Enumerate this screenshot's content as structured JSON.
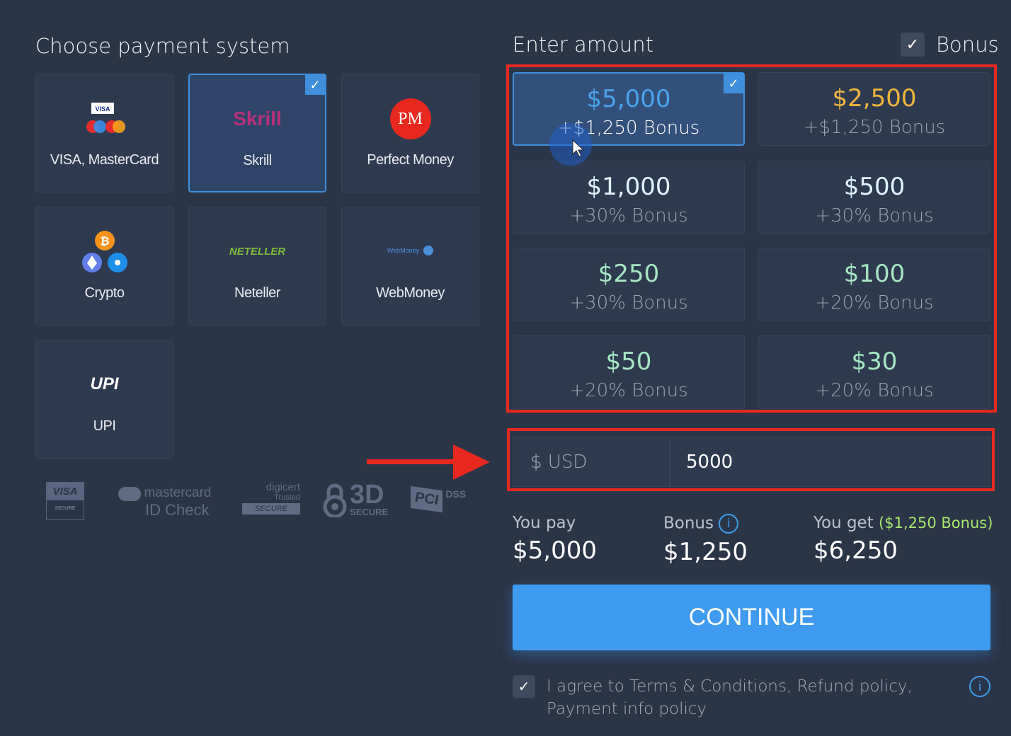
{
  "left": {
    "title": "Choose payment system",
    "methods": [
      {
        "label": "VISA, MasterCard",
        "icon": "visa-mastercard-icon",
        "selected": false
      },
      {
        "label": "Skrill",
        "icon": "skrill-logo",
        "logo_text": "Skrill",
        "selected": true
      },
      {
        "label": "Perfect Money",
        "icon": "perfect-money-logo",
        "logo_text": "PM",
        "selected": false
      },
      {
        "label": "Crypto",
        "icon": "crypto-icon",
        "selected": false
      },
      {
        "label": "Neteller",
        "icon": "neteller-logo",
        "logo_text": "NETELLER",
        "selected": false
      },
      {
        "label": "WebMoney",
        "icon": "webmoney-logo",
        "logo_text": "WebMoney",
        "selected": false
      },
      {
        "label": "UPI",
        "icon": "upi-logo",
        "logo_text": "UPI",
        "selected": false
      }
    ],
    "security": {
      "visa": "VISA",
      "visa_sub": "SECURE",
      "mc1": "mastercard",
      "mc2": "ID Check",
      "digicert": "digicert",
      "trusted": "Trusted",
      "secure": "SECURE",
      "three_d": "3D",
      "three_d_sub": "SECURE",
      "pci": "PCI",
      "dss": "DSS"
    }
  },
  "right": {
    "title": "Enter amount",
    "bonus_label": "Bonus",
    "bonus_checked": true,
    "amounts": [
      {
        "amount": "$5,000",
        "bonus": "+$1,250 Bonus",
        "color": "#4aa3ef",
        "selected": true
      },
      {
        "amount": "$2,500",
        "bonus": "+$1,250 Bonus",
        "color": "#f2b63c",
        "selected": false
      },
      {
        "amount": "$1,000",
        "bonus": "+30% Bonus",
        "color": "#dff5ff",
        "selected": false
      },
      {
        "amount": "$500",
        "bonus": "+30% Bonus",
        "color": "#dff5ff",
        "selected": false
      },
      {
        "amount": "$250",
        "bonus": "+30% Bonus",
        "color": "#a6e6c4",
        "selected": false
      },
      {
        "amount": "$100",
        "bonus": "+20% Bonus",
        "color": "#a6e6c4",
        "selected": false
      },
      {
        "amount": "$50",
        "bonus": "+20% Bonus",
        "color": "#a6e6c4",
        "selected": false
      },
      {
        "amount": "$30",
        "bonus": "+20% Bonus",
        "color": "#a6e6c4",
        "selected": false
      }
    ],
    "currency": "$ USD",
    "amount_value": "5000",
    "summary": {
      "pay_label": "You pay",
      "pay": "$5,000",
      "bonus_label": "Bonus",
      "bonus": "$1,250",
      "get_label": "You get",
      "get_bonus": "($1,250 Bonus)",
      "get": "$6,250"
    },
    "continue": "CONTINUE",
    "agree": "I agree to Terms & Conditions, Refund policy, Payment info policy",
    "agree_checked": true
  },
  "colors": {
    "background": "#2b3548",
    "accent": "#3f8fdd",
    "highlight": "#e8281e",
    "bonus_green": "#a6e66a"
  }
}
